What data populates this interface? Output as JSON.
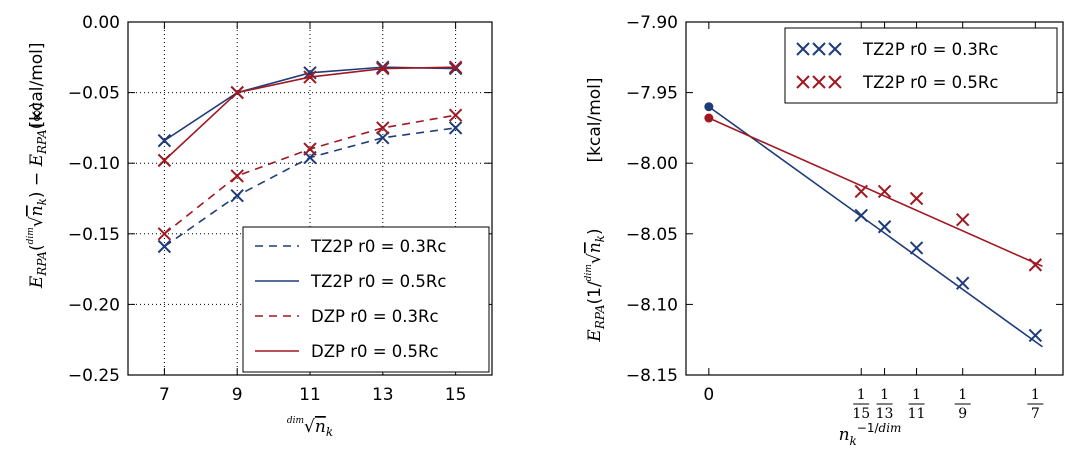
{
  "colors": {
    "blue": "#1f3c7a",
    "red": "#a01822"
  },
  "chart_data": [
    {
      "type": "line",
      "x": [
        7,
        9,
        11,
        13,
        15
      ],
      "xlim": [
        6,
        16
      ],
      "ylim": [
        -0.25,
        0.0
      ],
      "xticks": [
        "7",
        "9",
        "11",
        "13",
        "15"
      ],
      "yticks": [
        "0.00",
        "−0.05",
        "−0.10",
        "−0.15",
        "−0.20",
        "−0.25"
      ],
      "ytick_values": [
        0.0,
        -0.05,
        -0.1,
        -0.15,
        -0.2,
        -0.25
      ],
      "xlabel": "dim√n_k",
      "ylabel_unit": "[kcal/mol]",
      "grid": true,
      "legend_position": "lower-right",
      "series": [
        {
          "name": "TZ2P r0 = 0.3Rc",
          "style": "dashed",
          "color": "blue",
          "values": [
            -0.159,
            -0.123,
            -0.096,
            -0.082,
            -0.075
          ]
        },
        {
          "name": "TZ2P r0 = 0.5Rc",
          "style": "solid",
          "color": "blue",
          "values": [
            -0.084,
            -0.05,
            -0.036,
            -0.032,
            -0.033
          ]
        },
        {
          "name": "DZP r0 = 0.3Rc",
          "style": "dashed",
          "color": "red",
          "values": [
            -0.15,
            -0.109,
            -0.09,
            -0.075,
            -0.066
          ]
        },
        {
          "name": "DZP r0 = 0.5Rc",
          "style": "solid",
          "color": "red",
          "values": [
            -0.098,
            -0.05,
            -0.039,
            -0.033,
            -0.032
          ]
        }
      ]
    },
    {
      "type": "scatter",
      "xlim": [
        -0.01,
        0.155
      ],
      "ylim": [
        -8.15,
        -7.9
      ],
      "yticks": [
        "−7.90",
        "−7.95",
        "−8.00",
        "−8.05",
        "−8.10",
        "−8.15"
      ],
      "ytick_values": [
        -7.9,
        -7.95,
        -8.0,
        -8.05,
        -8.1,
        -8.15
      ],
      "xticks": [
        {
          "x": 0,
          "label": "0"
        },
        {
          "x": 0.0667,
          "num": "1",
          "den": "15"
        },
        {
          "x": 0.0769,
          "num": "1",
          "den": "13"
        },
        {
          "x": 0.0909,
          "num": "1",
          "den": "11"
        },
        {
          "x": 0.1111,
          "num": "1",
          "den": "9"
        },
        {
          "x": 0.1429,
          "num": "1",
          "den": "7"
        }
      ],
      "xlabel": "n_k^{-1/dim}",
      "ylabel_unit": "[kcal/mol]",
      "grid": false,
      "legend_position": "upper-right",
      "series": [
        {
          "name": "TZ2P   r0 = 0.3Rc",
          "color": "blue",
          "x": [
            0.0667,
            0.0769,
            0.0909,
            0.1111,
            0.1429
          ],
          "y": [
            -8.037,
            -8.045,
            -8.06,
            -8.085,
            -8.122
          ],
          "fit": {
            "x0": 0,
            "y0": -7.96,
            "x1": 0.146,
            "y1": -8.13
          }
        },
        {
          "name": "TZ2P   r0 = 0.5Rc",
          "color": "red",
          "x": [
            0.0667,
            0.0769,
            0.0909,
            0.1111,
            0.1429
          ],
          "y": [
            -8.02,
            -8.02,
            -8.025,
            -8.04,
            -8.072
          ],
          "fit": {
            "x0": 0,
            "y0": -7.968,
            "x1": 0.146,
            "y1": -8.073
          }
        }
      ]
    }
  ]
}
